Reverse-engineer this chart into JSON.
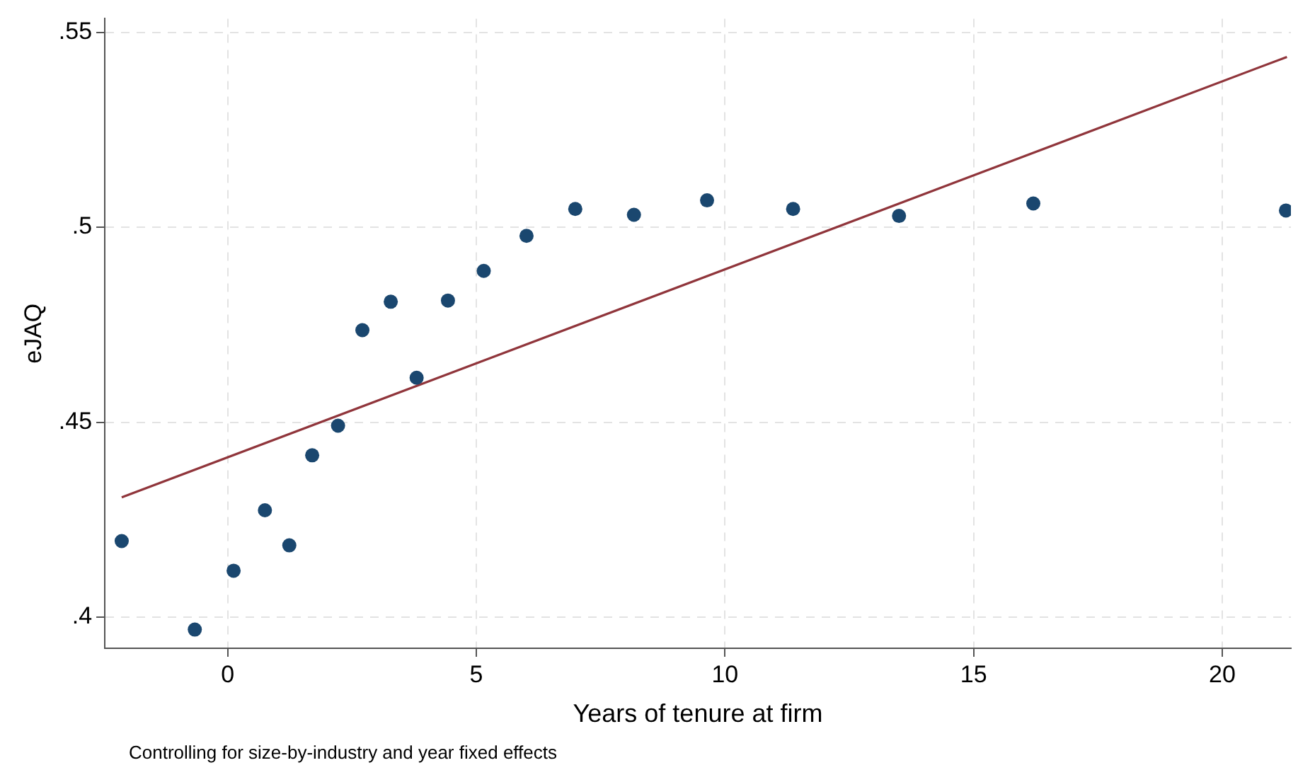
{
  "chart_data": {
    "type": "scatter",
    "xlabel": "Years of tenure at firm",
    "ylabel": "eJAQ",
    "annotations": [
      "Controlling for size-by-industry and year fixed effects"
    ],
    "x": [
      -2.13,
      -0.66,
      0.12,
      0.75,
      1.24,
      1.7,
      2.22,
      2.71,
      3.28,
      3.8,
      4.43,
      5.15,
      6.01,
      6.99,
      8.17,
      9.64,
      11.37,
      13.5,
      16.2,
      21.28
    ],
    "series": [
      {
        "type": "scatter",
        "color": "#1a476f",
        "marker": "circle",
        "values": [
          0.4195,
          0.3968,
          0.4119,
          0.4274,
          0.4184,
          0.4415,
          0.4491,
          0.4736,
          0.4809,
          0.4614,
          0.4812,
          0.4888,
          0.4978,
          0.5047,
          0.5032,
          0.5069,
          0.5047,
          0.5029,
          0.5061,
          0.5043
        ]
      },
      {
        "type": "line",
        "color": "#90353b",
        "marker": "none",
        "line_style": "solid",
        "x": [
          -2.13,
          21.3
        ],
        "values": [
          0.4307,
          0.5437
        ]
      }
    ],
    "xlim": [
      -2.47,
      21.38
    ],
    "ylim": [
      0.392,
      0.5535
    ],
    "xticks": [
      0,
      5,
      10,
      15,
      20
    ],
    "yticks": [
      {
        "value": 0.4,
        "label": ".4"
      },
      {
        "value": 0.45,
        "label": ".45"
      },
      {
        "value": 0.5,
        "label": ".5"
      },
      {
        "value": 0.55,
        "label": ".55"
      }
    ],
    "grid": true,
    "legend": false
  }
}
